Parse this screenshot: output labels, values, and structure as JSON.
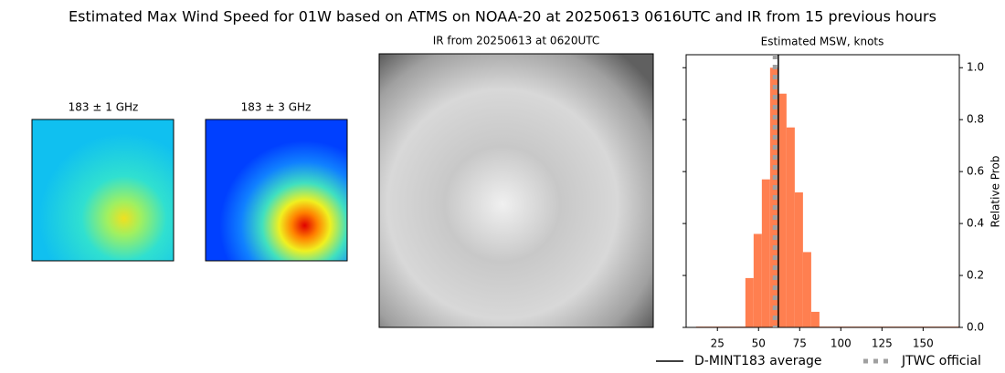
{
  "title": "Estimated Max Wind Speed for 01W based on ATMS on NOAA-20 at 20250613 0616UTC and IR from 15 previous hours",
  "panels": [
    {
      "title": "183 ± 1 GHz"
    },
    {
      "title": "183 ± 3 GHz"
    },
    {
      "title": "IR from 20250613 at 0620UTC"
    }
  ],
  "chart_data": {
    "type": "histogram",
    "title": "Estimated MSW, knots",
    "y_label": "Relative Prob",
    "color": "#ff7f50",
    "bins": [
      12,
      17,
      22,
      27,
      32,
      37,
      42,
      47,
      52,
      57,
      62,
      67,
      72,
      77,
      82,
      87,
      92,
      97,
      102,
      107,
      112,
      117,
      122,
      127,
      132,
      137,
      142,
      147,
      152,
      157,
      162,
      167,
      172
    ],
    "values": [
      0.003,
      0.003,
      0.003,
      0.003,
      0.003,
      0.003,
      0.19,
      0.36,
      0.57,
      1.0,
      0.9,
      0.77,
      0.52,
      0.29,
      0.06,
      0.003,
      0.003,
      0.003,
      0.003,
      0.003,
      0.003,
      0.003,
      0.003,
      0.003,
      0.003,
      0.003,
      0.003,
      0.003,
      0.003,
      0.003,
      0.003,
      0.003
    ],
    "xlim": [
      6,
      172
    ],
    "xticks": [
      25,
      50,
      75,
      100,
      125,
      150
    ],
    "ylim": [
      0,
      1.05
    ],
    "yticks": [
      {
        "value": 0,
        "label": "0.0"
      },
      {
        "value": 0.2,
        "label": "0.2"
      },
      {
        "value": 0.4,
        "label": "0.4"
      },
      {
        "value": 0.6,
        "label": "0.6"
      },
      {
        "value": 0.8,
        "label": "0.8"
      },
      {
        "value": 1.0,
        "label": "1.0"
      }
    ],
    "lines": [
      {
        "name": "D-MINT183 average",
        "x": 62,
        "color": "#000000",
        "style": "solid"
      },
      {
        "name": "JTWC official",
        "x": 60,
        "color": "#a0a0a0",
        "style": "dotted"
      }
    ]
  }
}
